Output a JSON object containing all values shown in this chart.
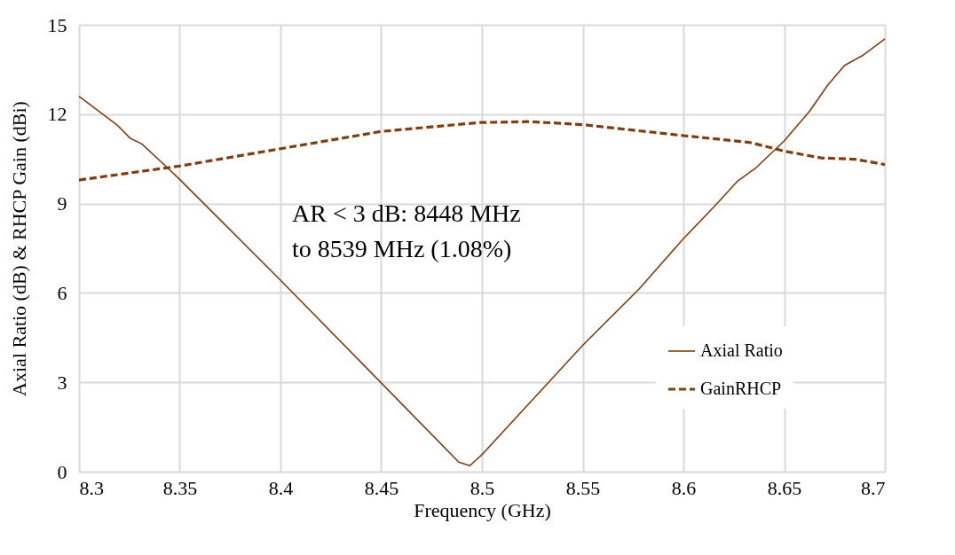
{
  "chart_data": {
    "type": "line",
    "xlabel": "Frequency (GHz)",
    "ylabel": "Axial Ratio (dB) & RHCP Gain (dBi)",
    "xlim": [
      8.3,
      8.7
    ],
    "xticks": [
      8.3,
      8.35,
      8.4,
      8.45,
      8.5,
      8.55,
      8.6,
      8.65,
      8.7
    ],
    "ylim": [
      0,
      15
    ],
    "yticks": [
      0,
      3,
      6,
      9,
      12,
      15
    ],
    "grid": true,
    "legend": "bottom right",
    "marker": "none",
    "annotations": [
      "AR < 3 dB: 8448 MHz to 8539 MHz (1.08%)"
    ],
    "series": [
      {
        "name": "Axial Ratio",
        "color": "#843c0c",
        "line_style": "solid",
        "x": [
          8.3,
          8.3187,
          8.3253,
          8.3312,
          8.343,
          8.35,
          8.4,
          8.45,
          8.4885,
          8.494,
          8.5,
          8.55,
          8.578,
          8.6,
          8.6156,
          8.627,
          8.636,
          8.65,
          8.6626,
          8.6718,
          8.68,
          8.6894,
          8.7
        ],
        "values": [
          12.6,
          11.65,
          11.2,
          11.0,
          10.26,
          9.81,
          6.43,
          2.98,
          0.32,
          0.2,
          0.57,
          4.24,
          6.13,
          7.82,
          8.92,
          9.76,
          10.2,
          11.1,
          12.1,
          12.99,
          13.64,
          13.99,
          14.53
        ]
      },
      {
        "name": "GainRHCP",
        "color": "#843c0c",
        "line_style": "dashed",
        "x": [
          8.3,
          8.35,
          8.4,
          8.45,
          8.4988,
          8.524,
          8.55,
          8.6,
          8.6332,
          8.65,
          8.6685,
          8.685,
          8.7
        ],
        "values": [
          9.79,
          10.26,
          10.84,
          11.42,
          11.72,
          11.75,
          11.65,
          11.28,
          11.05,
          10.76,
          10.53,
          10.49,
          10.31
        ]
      }
    ]
  }
}
